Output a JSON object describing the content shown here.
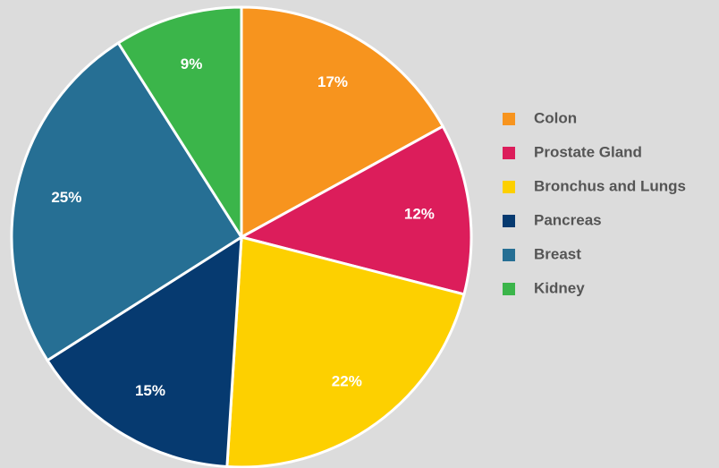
{
  "chart_data": {
    "type": "pie",
    "categories": [
      "Colon",
      "Prostate Gland",
      "Bronchus and Lungs",
      "Pancreas",
      "Breast",
      "Kidney"
    ],
    "values": [
      17,
      12,
      22,
      15,
      25,
      9
    ],
    "value_labels": [
      "17%",
      "12%",
      "22%",
      "15%",
      "25%",
      "9%"
    ],
    "colors": [
      "#f7941e",
      "#dc1d5b",
      "#fdd000",
      "#063a70",
      "#266f94",
      "#3bb54a"
    ],
    "legend": "right"
  }
}
